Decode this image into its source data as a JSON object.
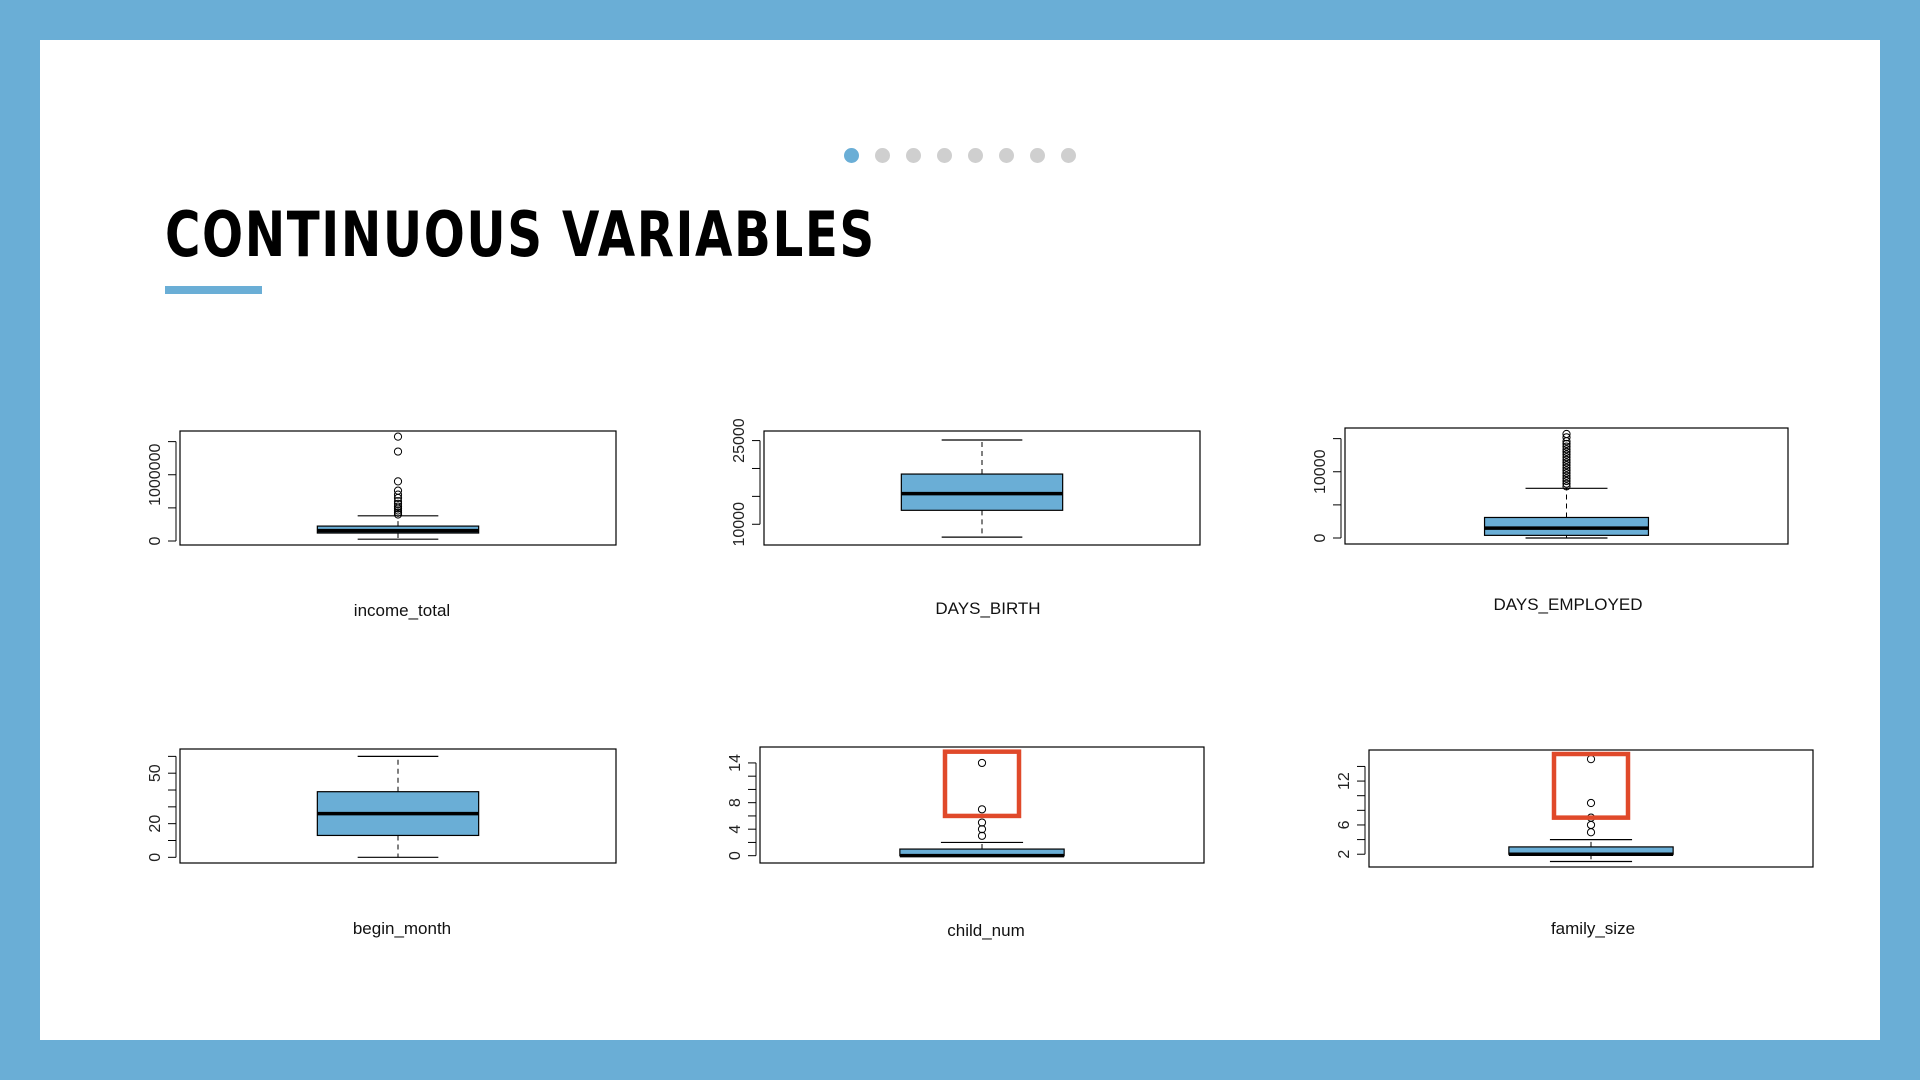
{
  "slide": {
    "title": "CONTINUOUS VARIABLES",
    "dots": {
      "count": 8,
      "active": 0
    }
  },
  "colors": {
    "frame": "#6aaed6",
    "box_fill": "#6aaed6",
    "highlight": "#e0492a",
    "dot_inactive": "#cfcfcf"
  },
  "chart_data": [
    {
      "type": "boxplot",
      "xlabel": "income_total",
      "ylim": [
        0,
        1600000
      ],
      "yticks": [
        0,
        1000000
      ],
      "minor_ticks": [
        0,
        500000,
        1000000,
        1500000
      ],
      "stats": {
        "whisker_low": 27000,
        "q1": 120000,
        "median": 157500,
        "q3": 225000,
        "whisker_high": 380000
      },
      "outliers": [
        400000,
        430000,
        460000,
        490000,
        520000,
        560000,
        600000,
        650000,
        700000,
        760000,
        900000,
        1350000,
        1575000
      ],
      "highlight": null
    },
    {
      "type": "boxplot",
      "xlabel": "DAYS_BIRTH",
      "ylim": [
        7000,
        26000
      ],
      "yticks": [
        10000,
        25000
      ],
      "minor_ticks": [
        10000,
        15000,
        20000,
        25000
      ],
      "stats": {
        "whisker_low": 7700,
        "q1": 12500,
        "median": 15500,
        "q3": 19000,
        "whisker_high": 25100
      },
      "outliers": [],
      "highlight": null
    },
    {
      "type": "boxplot",
      "xlabel": "DAYS_EMPLOYED",
      "ylim": [
        -300,
        16000
      ],
      "yticks": [
        0,
        10000
      ],
      "minor_ticks": [
        0,
        5000,
        10000,
        15000
      ],
      "stats": {
        "whisker_low": 0,
        "q1": 400,
        "median": 1500,
        "q3": 3100,
        "whisker_high": 7500
      },
      "outliers": [
        7800,
        8200,
        8600,
        9000,
        9400,
        9800,
        10200,
        10600,
        11000,
        11400,
        11800,
        12200,
        12600,
        13000,
        13400,
        13800,
        14200,
        14600,
        15200,
        15700
      ],
      "highlight": null
    },
    {
      "type": "boxplot",
      "xlabel": "begin_month",
      "ylim": [
        -1,
        62
      ],
      "yticks": [
        0,
        20,
        50
      ],
      "minor_ticks": [
        0,
        10,
        20,
        30,
        40,
        50,
        60
      ],
      "stats": {
        "whisker_low": 0,
        "q1": 13,
        "median": 26,
        "q3": 39,
        "whisker_high": 60
      },
      "outliers": [],
      "highlight": null
    },
    {
      "type": "boxplot",
      "xlabel": "child_num",
      "ylim": [
        -0.5,
        15.8
      ],
      "yticks": [
        0,
        4,
        8,
        14
      ],
      "minor_ticks": [
        0,
        2,
        4,
        6,
        8,
        10,
        12,
        14
      ],
      "stats": {
        "whisker_low": 0,
        "q1": 0,
        "median": 0,
        "q3": 1,
        "whisker_high": 2
      },
      "outliers": [
        3,
        4,
        5,
        7,
        14
      ],
      "highlight": {
        "y0": 6,
        "y1": 15.7
      }
    },
    {
      "type": "boxplot",
      "xlabel": "family_size",
      "ylim": [
        0.8,
        15.7
      ],
      "yticks": [
        2,
        6,
        12
      ],
      "minor_ticks": [
        2,
        4,
        6,
        8,
        10,
        12,
        14
      ],
      "stats": {
        "whisker_low": 1,
        "q1": 2,
        "median": 2,
        "q3": 3,
        "whisker_high": 4
      },
      "outliers": [
        5,
        6,
        7,
        9,
        15
      ],
      "highlight": {
        "y0": 7,
        "y1": 15.7
      }
    }
  ]
}
